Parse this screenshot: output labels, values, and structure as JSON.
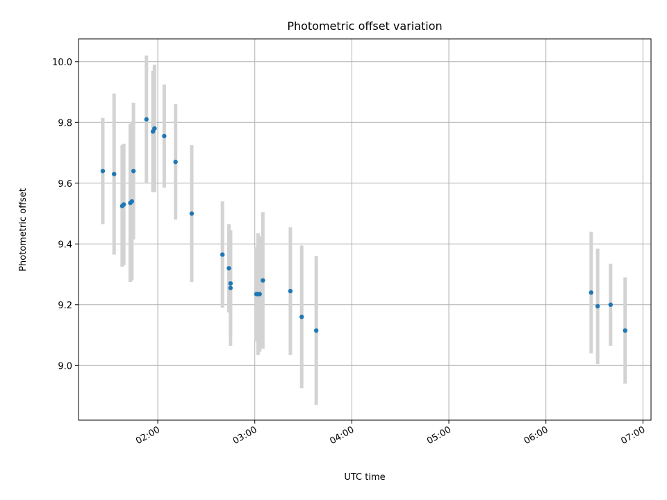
{
  "chart_data": {
    "type": "scatter",
    "title": "Photometric offset variation",
    "xlabel": "UTC time",
    "ylabel": "Photometric offset",
    "x_ticks": [
      "02:00",
      "03:00",
      "04:00",
      "05:00",
      "06:00",
      "07:00"
    ],
    "y_ticks": [
      "9.0",
      "9.2",
      "9.4",
      "9.6",
      "9.8",
      "10.0"
    ],
    "xlim": [
      "01:11",
      "07:05"
    ],
    "ylim": [
      8.82,
      10.075
    ],
    "grid": true,
    "colors": {
      "point": "#1f77b4",
      "errorbar": "#d3d3d3"
    },
    "points": [
      {
        "x": "01:26",
        "y": 9.64,
        "err": 0.175
      },
      {
        "x": "01:33",
        "y": 9.63,
        "err": 0.265
      },
      {
        "x": "01:38",
        "y": 9.525,
        "err": 0.2
      },
      {
        "x": "01:39",
        "y": 9.53,
        "err": 0.2
      },
      {
        "x": "01:43",
        "y": 9.535,
        "err": 0.26
      },
      {
        "x": "01:44",
        "y": 9.54,
        "err": 0.26
      },
      {
        "x": "01:45",
        "y": 9.64,
        "err": 0.225
      },
      {
        "x": "01:53",
        "y": 9.81,
        "err": 0.21
      },
      {
        "x": "01:57",
        "y": 9.77,
        "err": 0.2
      },
      {
        "x": "01:58",
        "y": 9.78,
        "err": 0.2
      },
      {
        "x": "01:58",
        "y": 9.78,
        "err": 0.21
      },
      {
        "x": "02:04",
        "y": 9.755,
        "err": 0.17
      },
      {
        "x": "02:11",
        "y": 9.67,
        "err": 0.19
      },
      {
        "x": "02:21",
        "y": 9.5,
        "err": 0.225
      },
      {
        "x": "02:40",
        "y": 9.365,
        "err": 0.175
      },
      {
        "x": "02:44",
        "y": 9.32,
        "err": 0.145
      },
      {
        "x": "02:45",
        "y": 9.27,
        "err": 0.175
      },
      {
        "x": "02:45",
        "y": 9.255,
        "err": 0.19
      },
      {
        "x": "03:01",
        "y": 9.235,
        "err": 0.155
      },
      {
        "x": "03:02",
        "y": 9.235,
        "err": 0.2
      },
      {
        "x": "03:03",
        "y": 9.235,
        "err": 0.19
      },
      {
        "x": "03:05",
        "y": 9.28,
        "err": 0.225
      },
      {
        "x": "03:22",
        "y": 9.245,
        "err": 0.21
      },
      {
        "x": "03:29",
        "y": 9.16,
        "err": 0.235
      },
      {
        "x": "03:38",
        "y": 9.115,
        "err": 0.245
      },
      {
        "x": "06:28",
        "y": 9.24,
        "err": 0.2
      },
      {
        "x": "06:32",
        "y": 9.195,
        "err": 0.19
      },
      {
        "x": "06:40",
        "y": 9.2,
        "err": 0.135
      },
      {
        "x": "06:49",
        "y": 9.115,
        "err": 0.175
      }
    ]
  }
}
